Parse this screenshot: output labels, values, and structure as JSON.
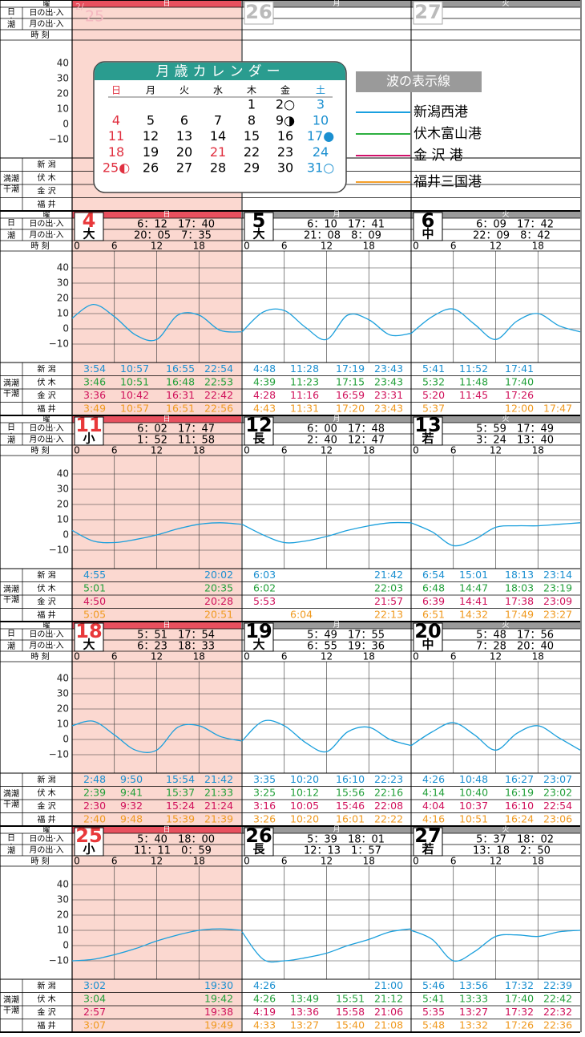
{
  "labels": {
    "weekday_row": "曜",
    "sun": "日の出·入",
    "moon": "月の出·入",
    "side": [
      "日",
      "·",
      "潮"
    ],
    "time_row": "時 刻",
    "tide_label": [
      "満潮",
      "干潮"
    ],
    "ports": [
      "新 潟",
      "伏 木",
      "金 沢",
      "福 井"
    ]
  },
  "ylim": [
    -15,
    45
  ],
  "yticks": [
    40,
    30,
    20,
    10,
    0,
    {
      "value": -10,
      "label": "−10"
    }
  ],
  "xlim": [
    0,
    24
  ],
  "hour_ticks": [
    0,
    6,
    12,
    18
  ],
  "curve_hours": [
    0,
    3,
    6,
    9,
    12,
    15,
    18,
    21,
    24
  ],
  "curve_color": "#1a9fdc",
  "port_colors": [
    "#1a8fd0",
    "#22a03a",
    "#d0105a",
    "#f09a20"
  ],
  "sunday_shade": "#fbd8d0",
  "sunday_strip": "#e8505e",
  "weekday_strip": "#9a9a9a",
  "sunday_date_color": "#e8383a",
  "calendar": {
    "title": "月歳カレンダー",
    "weekdays": [
      "日",
      "月",
      "火",
      "水",
      "木",
      "金",
      "土"
    ],
    "rows": [
      [
        null,
        null,
        null,
        null,
        "1",
        "2○",
        "3"
      ],
      [
        "4",
        "5",
        "6",
        "7",
        "8",
        "9◑",
        "10"
      ],
      [
        "11",
        "12",
        "13",
        "14",
        "15",
        "16",
        "17●"
      ],
      [
        "18",
        "19",
        "20",
        "21",
        "22",
        "23",
        "24"
      ],
      [
        "25◐",
        "26",
        "27",
        "28",
        "29",
        "30",
        "31○"
      ]
    ],
    "holiday_cells": [
      [
        3,
        3
      ]
    ]
  },
  "legend": {
    "title": "波の表示線",
    "entries": [
      {
        "name": "新潟西港",
        "color": "#1aa0e0"
      },
      {
        "name": "伏木富山港",
        "color": "#2db040"
      },
      {
        "name": "金 沢 港",
        "color": "#d0106a"
      },
      {
        "name": "福井三国港",
        "color": "#f5a02a"
      }
    ]
  },
  "weeks": [
    {
      "days": [
        {
          "month": "2/",
          "date": "25",
          "weekday": "日"
        },
        {
          "date": "26",
          "weekday": "月"
        },
        {
          "date": "27",
          "weekday": "火"
        }
      ]
    },
    {
      "days": [
        {
          "date": "4",
          "weekday": "日",
          "tide": "大",
          "sun": [
            "6：12",
            "17：40"
          ],
          "moon": [
            "20：05",
            "7：35"
          ],
          "curve": [
            7,
            16,
            8,
            -4,
            -7,
            9,
            9,
            -1,
            -2
          ],
          "tides": [
            [
              "3:54",
              "10:57",
              "16:55",
              "22:54"
            ],
            [
              "3:46",
              "10:51",
              "16:48",
              "22:53"
            ],
            [
              "3:36",
              "10:42",
              "16:31",
              "22:42"
            ],
            [
              "3:49",
              "10:57",
              "16:51",
              "22:56"
            ]
          ]
        },
        {
          "date": "5",
          "weekday": "月",
          "tide": "大",
          "sun": [
            "6：10",
            "17：41"
          ],
          "moon": [
            "21：08",
            "8：09"
          ],
          "curve": [
            -2,
            11,
            12,
            1,
            -7,
            9,
            6,
            -4,
            -3
          ],
          "tides": [
            [
              "4:48",
              "11:28",
              "17:19",
              "23:43"
            ],
            [
              "4:39",
              "11:23",
              "17:15",
              "23:43"
            ],
            [
              "4:28",
              "11:16",
              "16:59",
              "23:31"
            ],
            [
              "4:43",
              "11:31",
              "17:20",
              "23:43"
            ]
          ]
        },
        {
          "date": "6",
          "weekday": "火",
          "tide": "中",
          "sun": [
            "6：09",
            "17：42"
          ],
          "moon": [
            "22：09",
            "8：42"
          ],
          "curve": [
            -3,
            8,
            13,
            3,
            -7,
            5,
            10,
            2,
            -2
          ],
          "tides": [
            [
              "5:41",
              "11:52",
              "17:41",
              null
            ],
            [
              "5:32",
              "11:48",
              "17:40",
              null
            ],
            [
              "5:20",
              "11:45",
              "17:26",
              null
            ],
            [
              "5:37",
              null,
              "12:00",
              "17:47"
            ]
          ]
        }
      ]
    },
    {
      "days": [
        {
          "date": "11",
          "weekday": "日",
          "tide": "小",
          "sun": [
            "6：02",
            "17：47"
          ],
          "moon": [
            "1：52",
            "11：58"
          ],
          "curve": [
            3,
            -4,
            -5,
            -3,
            0,
            4,
            7,
            8,
            7
          ],
          "tides": [
            [
              "4:55",
              null,
              null,
              "20:02"
            ],
            [
              "5:01",
              null,
              null,
              "20:35"
            ],
            [
              "4:50",
              null,
              null,
              "20:28"
            ],
            [
              "5:05",
              null,
              null,
              "20:51"
            ]
          ]
        },
        {
          "date": "12",
          "weekday": "月",
          "tide": "長",
          "sun": [
            "6：00",
            "17：48"
          ],
          "moon": [
            "2：40",
            "12：47"
          ],
          "curve": [
            7,
            0,
            -5,
            -4,
            -1,
            3,
            6,
            8,
            8
          ],
          "tides": [
            [
              "6:03",
              null,
              null,
              "21:42"
            ],
            [
              "6:02",
              null,
              null,
              "22:03"
            ],
            [
              "5:53",
              null,
              null,
              "21:57"
            ],
            [
              null,
              "6:04",
              null,
              "22:13"
            ]
          ]
        },
        {
          "date": "13",
          "weekday": "火",
          "tide": "若",
          "sun": [
            "5：59",
            "17：49"
          ],
          "moon": [
            "3：24",
            "13：40"
          ],
          "curve": [
            8,
            2,
            -7,
            -3,
            5,
            6,
            6,
            7,
            8
          ],
          "tides": [
            [
              "6:54",
              "15:01",
              "18:13",
              "23:14"
            ],
            [
              "6:48",
              "14:47",
              "18:03",
              "23:19"
            ],
            [
              "6:39",
              "14:41",
              "17:38",
              "23:09"
            ],
            [
              "6:51",
              "14:32",
              "17:49",
              "23:27"
            ]
          ]
        }
      ]
    },
    {
      "days": [
        {
          "date": "18",
          "weekday": "日",
          "tide": "大",
          "sun": [
            "5：51",
            "17：54"
          ],
          "moon": [
            "6：23",
            "18：33"
          ],
          "curve": [
            9,
            12,
            3,
            -7,
            -7,
            8,
            9,
            2,
            -1
          ],
          "tides": [
            [
              "2:48",
              "9:50",
              "15:54",
              "21:42"
            ],
            [
              "2:39",
              "9:41",
              "15:37",
              "21:33"
            ],
            [
              "2:30",
              "9:32",
              "15:24",
              "21:24"
            ],
            [
              "2:40",
              "9:48",
              "15:39",
              "21:39"
            ]
          ]
        },
        {
          "date": "19",
          "weekday": "月",
          "tide": "大",
          "sun": [
            "5：49",
            "17：55"
          ],
          "moon": [
            "6：55",
            "19：36"
          ],
          "curve": [
            -1,
            12,
            9,
            -2,
            -8,
            5,
            8,
            0,
            -4
          ],
          "tides": [
            [
              "3:35",
              "10:20",
              "16:10",
              "22:23"
            ],
            [
              "3:25",
              "10:12",
              "15:56",
              "22:16"
            ],
            [
              "3:16",
              "10:05",
              "15:46",
              "22:08"
            ],
            [
              "3:26",
              "10:20",
              "16:01",
              "22:22"
            ]
          ]
        },
        {
          "date": "20",
          "weekday": "火",
          "tide": "中",
          "sun": [
            "5：48",
            "17：56"
          ],
          "moon": [
            "7：28",
            "20：40"
          ],
          "curve": [
            -4,
            5,
            11,
            3,
            -7,
            4,
            9,
            1,
            -7
          ],
          "tides": [
            [
              "4:26",
              "10:48",
              "16:27",
              "23:07"
            ],
            [
              "4:14",
              "10:40",
              "16:19",
              "23:02"
            ],
            [
              "4:04",
              "10:37",
              "16:10",
              "22:54"
            ],
            [
              "4:16",
              "10:51",
              "16:24",
              "23:06"
            ]
          ]
        }
      ]
    },
    {
      "days": [
        {
          "date": "25",
          "weekday": "日",
          "tide": "小",
          "sun": [
            "5：40",
            "18：00"
          ],
          "moon": [
            "11：11",
            "0：59"
          ],
          "curve": [
            -10,
            -9,
            -6,
            -2,
            3,
            7,
            10,
            11,
            10
          ],
          "tides": [
            [
              "3:02",
              null,
              null,
              "19:30"
            ],
            [
              "3:04",
              null,
              null,
              "19:42"
            ],
            [
              "2:57",
              null,
              null,
              "19:38"
            ],
            [
              "3:07",
              null,
              null,
              "19:49"
            ]
          ]
        },
        {
          "date": "26",
          "weekday": "月",
          "tide": "長",
          "sun": [
            "5：39",
            "18：01"
          ],
          "moon": [
            "12：13",
            "1：57"
          ],
          "curve": [
            9,
            -9,
            -10,
            -8,
            -5,
            0,
            4,
            9,
            11
          ],
          "tides": [
            [
              "4:26",
              null,
              null,
              "21:00"
            ],
            [
              "4:26",
              "13:49",
              "15:51",
              "21:12"
            ],
            [
              "4:19",
              "13:36",
              "15:58",
              "21:06"
            ],
            [
              "4:33",
              "13:27",
              "15:40",
              "21:08"
            ]
          ]
        },
        {
          "date": "27",
          "weekday": "火",
          "tide": "若",
          "sun": [
            "5：37",
            "18：02"
          ],
          "moon": [
            "13：18",
            "2：50"
          ],
          "curve": [
            10,
            4,
            -10,
            -4,
            6,
            7,
            6,
            9,
            10
          ],
          "tides": [
            [
              "5:46",
              "13:56",
              "17:32",
              "22:39"
            ],
            [
              "5:41",
              "13:33",
              "17:40",
              "22:42"
            ],
            [
              "5:35",
              "13:27",
              "17:32",
              "22:32"
            ],
            [
              "5:48",
              "13:32",
              "17:26",
              "22:36"
            ]
          ]
        }
      ]
    }
  ]
}
